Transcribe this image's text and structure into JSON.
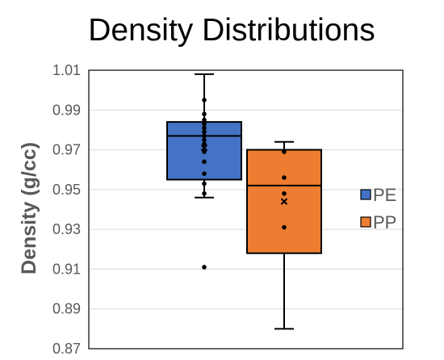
{
  "chart_data": {
    "type": "box",
    "title": "Density Distributions",
    "xlabel": "",
    "ylabel": "Density (g/cc)",
    "ylim": [
      0.87,
      1.01
    ],
    "yticks": [
      "1.01",
      "0.99",
      "0.97",
      "0.95",
      "0.93",
      "0.91",
      "0.89",
      "0.87"
    ],
    "grid": true,
    "legend_position": "right",
    "series": [
      {
        "name": "PE",
        "color": "#4472C4",
        "whisker_low": 0.946,
        "q1": 0.955,
        "median": 0.977,
        "q3": 0.984,
        "whisker_high": 1.008,
        "mean": 0.971,
        "points": [
          0.995,
          0.988,
          0.985,
          0.983,
          0.981,
          0.979,
          0.977,
          0.975,
          0.973,
          0.969,
          0.964,
          0.958,
          0.953,
          0.948,
          0.911
        ]
      },
      {
        "name": "PP",
        "color": "#ED7D31",
        "whisker_low": 0.88,
        "q1": 0.918,
        "median": 0.952,
        "q3": 0.97,
        "whisker_high": 0.974,
        "mean": 0.944,
        "points": [
          0.969,
          0.956,
          0.948,
          0.931
        ]
      }
    ]
  }
}
